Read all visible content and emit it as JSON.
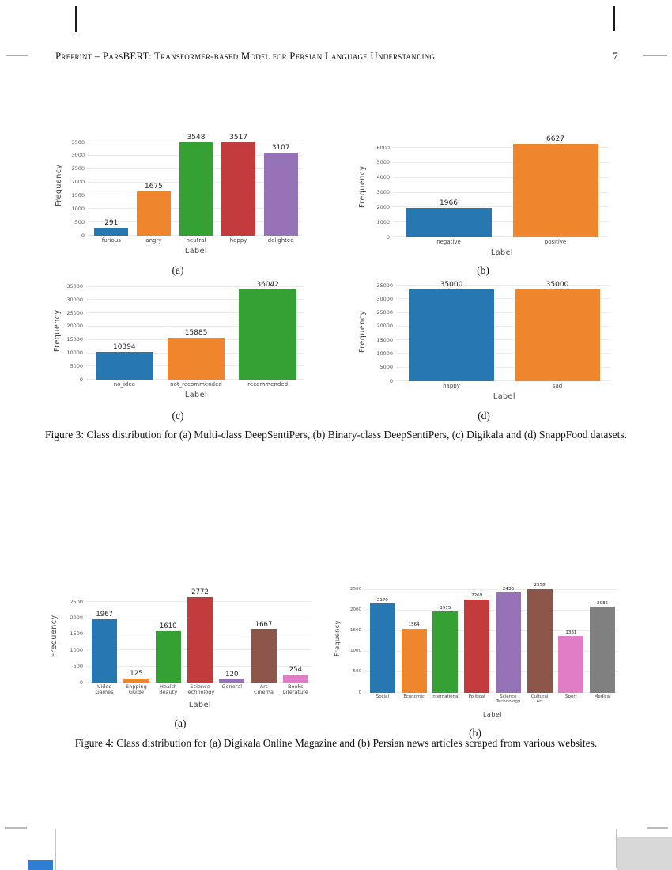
{
  "page": {
    "header_title": "Preprint – ParsBERT: Transformer-based Model for Persian Language Understanding",
    "page_number": "7"
  },
  "figure3": {
    "caption": "Figure 3: Class distribution for (a) Multi-class DeepSentiPers, (b) Binary-class DeepSentiPers, (c) Digikala and (d) SnappFood datasets."
  },
  "figure4": {
    "caption": "Figure 4: Class distribution for (a) Digikala Online Magazine and (b) Persian news articles scraped from various websites."
  },
  "chart_data": [
    {
      "type": "bar",
      "panel_label": "(a)",
      "figure": "Figure 3",
      "title": "",
      "xlabel": "Label",
      "ylabel": "Frequency",
      "categories": [
        "furious",
        "angry",
        "neutral",
        "happy",
        "delighted"
      ],
      "values": [
        291,
        1675,
        3548,
        3517,
        3107
      ],
      "colors": [
        "#2778b0",
        "#ef862d",
        "#35a135",
        "#c23b3d",
        "#9572b5"
      ],
      "yticks": [
        0,
        500,
        1000,
        1500,
        2000,
        2500,
        3000,
        3500
      ],
      "ylim": [
        0,
        3800
      ],
      "grid": true,
      "legend": false
    },
    {
      "type": "bar",
      "panel_label": "(b)",
      "figure": "Figure 3",
      "title": "",
      "xlabel": "Label",
      "ylabel": "Frequency",
      "categories": [
        "negative",
        "positive"
      ],
      "values": [
        1966,
        6627
      ],
      "colors": [
        "#2778b0",
        "#ef862d"
      ],
      "yticks": [
        0,
        1000,
        2000,
        3000,
        4000,
        5000,
        6000
      ],
      "ylim": [
        0,
        6800
      ],
      "grid": true,
      "legend": false
    },
    {
      "type": "bar",
      "panel_label": "(c)",
      "figure": "Figure 3",
      "title": "",
      "xlabel": "Label",
      "ylabel": "Frequency",
      "categories": [
        "no_idea",
        "not_recommended",
        "recommended"
      ],
      "values": [
        10394,
        15885,
        36042
      ],
      "colors": [
        "#2778b0",
        "#ef862d",
        "#35a135"
      ],
      "yticks": [
        0,
        5000,
        10000,
        15000,
        20000,
        25000,
        30000,
        35000
      ],
      "ylim": [
        0,
        37000
      ],
      "grid": true,
      "legend": false
    },
    {
      "type": "bar",
      "panel_label": "(d)",
      "figure": "Figure 3",
      "title": "",
      "xlabel": "Label",
      "ylabel": "Frequency",
      "categories": [
        "happy",
        "sad"
      ],
      "values": [
        35000,
        35000
      ],
      "colors": [
        "#2778b0",
        "#ef862d"
      ],
      "yticks": [
        0,
        5000,
        10000,
        15000,
        20000,
        25000,
        30000,
        35000
      ],
      "ylim": [
        0,
        36500
      ],
      "grid": true,
      "legend": false
    },
    {
      "type": "bar",
      "panel_label": "(a)",
      "figure": "Figure 4",
      "title": "",
      "xlabel": "Label",
      "ylabel": "Frequency",
      "categories": [
        "Video\nGames",
        "Shpping\nGuide",
        "Health\nBeauty",
        "Science\nTechnology",
        "General",
        "Art\nCinema",
        "Books\nLiterature"
      ],
      "values": [
        1967,
        125,
        1610,
        2772,
        120,
        1667,
        254
      ],
      "colors": [
        "#2778b0",
        "#ef862d",
        "#35a135",
        "#c23b3d",
        "#9572b5",
        "#8c564b",
        "#df7ec7"
      ],
      "yticks": [
        0,
        500,
        1000,
        1500,
        2000,
        2500
      ],
      "ylim": [
        0,
        2900
      ],
      "grid": true,
      "legend": false
    },
    {
      "type": "bar",
      "panel_label": "(b)",
      "figure": "Figure 4",
      "title": "",
      "xlabel": "Label",
      "ylabel": "Frequency",
      "categories": [
        "Social",
        "Economic",
        "International",
        "Political",
        "Science\nTechnology",
        "Cultural\nArt",
        "Sport",
        "Medical"
      ],
      "values": [
        2170,
        1564,
        1975,
        2269,
        2436,
        2558,
        1381,
        2085
      ],
      "colors": [
        "#2778b0",
        "#ef862d",
        "#35a135",
        "#c23b3d",
        "#9572b5",
        "#8c564b",
        "#df7ec7",
        "#808080"
      ],
      "yticks": [
        0,
        500,
        1000,
        1500,
        2000,
        2500
      ],
      "ylim": [
        0,
        2650
      ],
      "grid": true,
      "legend": false
    }
  ]
}
